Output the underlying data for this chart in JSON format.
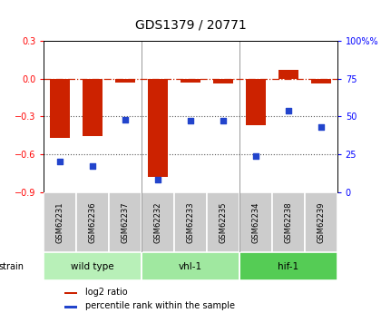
{
  "title": "GDS1379 / 20771",
  "samples": [
    "GSM62231",
    "GSM62236",
    "GSM62237",
    "GSM62232",
    "GSM62233",
    "GSM62235",
    "GSM62234",
    "GSM62238",
    "GSM62239"
  ],
  "log2_ratio": [
    -0.47,
    -0.46,
    -0.03,
    -0.78,
    -0.03,
    -0.04,
    -0.37,
    0.07,
    -0.04
  ],
  "percentile_rank": [
    20,
    17,
    48,
    8,
    47,
    47,
    24,
    54,
    43
  ],
  "groups": [
    {
      "label": "wild type",
      "indices": [
        0,
        1,
        2
      ],
      "color": "#b8f0b8"
    },
    {
      "label": "vhl-1",
      "indices": [
        3,
        4,
        5
      ],
      "color": "#a0e8a0"
    },
    {
      "label": "hif-1",
      "indices": [
        6,
        7,
        8
      ],
      "color": "#55cc55"
    }
  ],
  "ylim_left": [
    -0.9,
    0.3
  ],
  "ylim_right": [
    0,
    100
  ],
  "yticks_left": [
    -0.9,
    -0.6,
    -0.3,
    0.0,
    0.3
  ],
  "yticks_right": [
    0,
    25,
    50,
    75,
    100
  ],
  "bar_color": "#cc2200",
  "dot_color": "#2244cc",
  "bar_width": 0.6,
  "hline_color": "#cc2200",
  "dotted_line_color": "#555555",
  "background_color": "#ffffff",
  "plot_bg_color": "#ffffff",
  "sample_box_color": "#cccccc",
  "strain_label": "strain",
  "legend_log2": "log2 ratio",
  "legend_pct": "percentile rank within the sample",
  "group_separator_color": "#999999",
  "title_fontsize": 10,
  "tick_fontsize": 7,
  "sample_fontsize": 6,
  "group_fontsize": 7.5,
  "legend_fontsize": 7
}
